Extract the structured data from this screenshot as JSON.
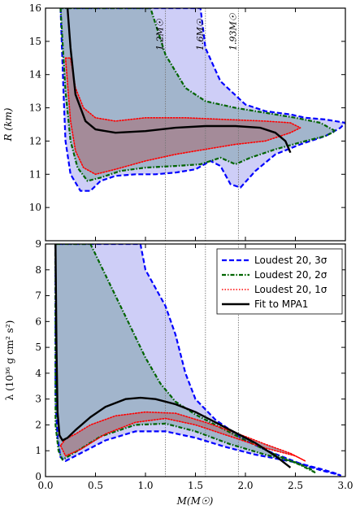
{
  "chart_data": [
    {
      "type": "area",
      "panel": "top",
      "xlabel": "",
      "ylabel": "R (km)",
      "xlim": [
        0.0,
        3.0
      ],
      "ylim": [
        9,
        16
      ],
      "yticks": [
        "10",
        "11",
        "12",
        "13",
        "14",
        "15",
        "16"
      ],
      "grid": false,
      "mass_markers": [
        {
          "x": 1.2,
          "label": "1.2M☉"
        },
        {
          "x": 1.6,
          "label": "1.6M☉"
        },
        {
          "x": 1.93,
          "label": "1.93M☉"
        }
      ],
      "series": [
        {
          "name": "Loudest 20, 3σ",
          "style": "dashed",
          "color": "#0000ff",
          "fill": "#c6c6f6",
          "points": [
            [
              0.15,
              16.0
            ],
            [
              0.18,
              13.5
            ],
            [
              0.2,
              12.0
            ],
            [
              0.25,
              11.0
            ],
            [
              0.35,
              10.5
            ],
            [
              0.45,
              10.5
            ],
            [
              0.55,
              10.8
            ],
            [
              0.7,
              10.95
            ],
            [
              0.9,
              11.0
            ],
            [
              1.1,
              11.0
            ],
            [
              1.3,
              11.05
            ],
            [
              1.5,
              11.15
            ],
            [
              1.65,
              11.4
            ],
            [
              1.75,
              11.25
            ],
            [
              1.85,
              10.7
            ],
            [
              1.95,
              10.6
            ],
            [
              2.1,
              11.1
            ],
            [
              2.3,
              11.6
            ],
            [
              2.55,
              11.9
            ],
            [
              2.8,
              12.15
            ],
            [
              2.95,
              12.4
            ],
            [
              3.0,
              12.55
            ],
            [
              2.8,
              12.65
            ],
            [
              2.6,
              12.7
            ],
            [
              2.45,
              12.8
            ],
            [
              2.2,
              12.9
            ],
            [
              2.0,
              13.1
            ],
            [
              1.75,
              13.8
            ],
            [
              1.6,
              14.8
            ],
            [
              1.55,
              16.0
            ]
          ]
        },
        {
          "name": "Loudest 20, 2σ",
          "style": "dash-dot",
          "color": "#006400",
          "fill": "#9ab0c4",
          "points": [
            [
              0.15,
              16.0
            ],
            [
              0.2,
              13.5
            ],
            [
              0.25,
              12.0
            ],
            [
              0.32,
              11.2
            ],
            [
              0.42,
              10.8
            ],
            [
              0.55,
              10.9
            ],
            [
              0.75,
              11.1
            ],
            [
              1.0,
              11.2
            ],
            [
              1.3,
              11.25
            ],
            [
              1.55,
              11.3
            ],
            [
              1.75,
              11.5
            ],
            [
              1.9,
              11.3
            ],
            [
              2.05,
              11.5
            ],
            [
              2.3,
              11.75
            ],
            [
              2.6,
              12.0
            ],
            [
              2.8,
              12.15
            ],
            [
              2.9,
              12.3
            ],
            [
              2.75,
              12.55
            ],
            [
              2.5,
              12.7
            ],
            [
              2.2,
              12.85
            ],
            [
              1.9,
              13.0
            ],
            [
              1.6,
              13.2
            ],
            [
              1.4,
              13.6
            ],
            [
              1.2,
              14.6
            ],
            [
              1.05,
              16.0
            ]
          ]
        },
        {
          "name": "Loudest 20, 1σ",
          "style": "dotted",
          "color": "#ff0000",
          "fill": "#a4848f",
          "points": [
            [
              0.2,
              14.5
            ],
            [
              0.25,
              12.6
            ],
            [
              0.3,
              11.7
            ],
            [
              0.38,
              11.2
            ],
            [
              0.5,
              11.0
            ],
            [
              0.7,
              11.15
            ],
            [
              1.0,
              11.4
            ],
            [
              1.3,
              11.6
            ],
            [
              1.6,
              11.75
            ],
            [
              1.9,
              11.9
            ],
            [
              2.2,
              12.0
            ],
            [
              2.45,
              12.25
            ],
            [
              2.55,
              12.4
            ],
            [
              2.45,
              12.55
            ],
            [
              2.2,
              12.6
            ],
            [
              1.8,
              12.65
            ],
            [
              1.4,
              12.7
            ],
            [
              1.0,
              12.7
            ],
            [
              0.7,
              12.6
            ],
            [
              0.5,
              12.7
            ],
            [
              0.38,
              13.0
            ],
            [
              0.3,
              13.6
            ],
            [
              0.25,
              14.5
            ]
          ]
        },
        {
          "name": "Fit to MPA1",
          "style": "solid",
          "color": "#000000",
          "points": [
            [
              0.22,
              16.0
            ],
            [
              0.25,
              14.8
            ],
            [
              0.3,
              13.4
            ],
            [
              0.4,
              12.6
            ],
            [
              0.5,
              12.35
            ],
            [
              0.7,
              12.25
            ],
            [
              1.0,
              12.3
            ],
            [
              1.3,
              12.4
            ],
            [
              1.6,
              12.45
            ],
            [
              1.9,
              12.45
            ],
            [
              2.15,
              12.4
            ],
            [
              2.3,
              12.25
            ],
            [
              2.4,
              12.0
            ],
            [
              2.45,
              11.65
            ]
          ]
        }
      ]
    },
    {
      "type": "area",
      "panel": "bottom",
      "xlabel": "M(M☉)",
      "ylabel": "λ (10³⁶ g cm² s²)",
      "xlim": [
        0.0,
        3.0
      ],
      "ylim": [
        0,
        9
      ],
      "xticks": [
        "0.0",
        "0.5",
        "1.0",
        "1.5",
        "2.0",
        "2.5",
        "3.0"
      ],
      "yticks": [
        "0",
        "1",
        "2",
        "3",
        "4",
        "5",
        "6",
        "7",
        "8",
        "9"
      ],
      "grid": false,
      "legend_position": "top-right",
      "series": [
        {
          "name": "Loudest 20, 3σ",
          "style": "dashed",
          "color": "#0000ff",
          "fill": "#c6c6f6",
          "points": [
            [
              0.1,
              9.0
            ],
            [
              0.1,
              3.0
            ],
            [
              0.12,
              1.5
            ],
            [
              0.15,
              0.75
            ],
            [
              0.2,
              0.6
            ],
            [
              0.35,
              0.9
            ],
            [
              0.6,
              1.4
            ],
            [
              0.9,
              1.75
            ],
            [
              1.2,
              1.75
            ],
            [
              1.5,
              1.5
            ],
            [
              1.8,
              1.15
            ],
            [
              2.1,
              0.85
            ],
            [
              2.5,
              0.55
            ],
            [
              2.75,
              0.3
            ],
            [
              2.88,
              0.15
            ],
            [
              2.95,
              0.05
            ],
            [
              2.75,
              0.25
            ],
            [
              2.55,
              0.5
            ],
            [
              2.25,
              0.95
            ],
            [
              2.0,
              1.4
            ],
            [
              1.7,
              2.2
            ],
            [
              1.5,
              3.0
            ],
            [
              1.4,
              4.0
            ],
            [
              1.3,
              5.5
            ],
            [
              1.2,
              6.6
            ],
            [
              1.0,
              8.0
            ],
            [
              0.95,
              9.0
            ]
          ]
        },
        {
          "name": "Loudest 20, 2σ",
          "style": "dash-dot",
          "color": "#006400",
          "fill": "#9ab0c4",
          "points": [
            [
              0.1,
              9.0
            ],
            [
              0.1,
              2.0
            ],
            [
              0.13,
              1.0
            ],
            [
              0.17,
              0.65
            ],
            [
              0.3,
              0.95
            ],
            [
              0.55,
              1.55
            ],
            [
              0.9,
              2.0
            ],
            [
              1.2,
              2.05
            ],
            [
              1.5,
              1.75
            ],
            [
              1.85,
              1.25
            ],
            [
              2.2,
              0.85
            ],
            [
              2.5,
              0.55
            ],
            [
              2.65,
              0.3
            ],
            [
              2.7,
              0.15
            ],
            [
              2.55,
              0.45
            ],
            [
              2.3,
              0.85
            ],
            [
              2.0,
              1.4
            ],
            [
              1.7,
              2.0
            ],
            [
              1.5,
              2.4
            ],
            [
              1.3,
              2.9
            ],
            [
              1.15,
              3.6
            ],
            [
              1.0,
              4.6
            ],
            [
              0.85,
              5.8
            ],
            [
              0.7,
              7.0
            ],
            [
              0.5,
              8.6
            ],
            [
              0.45,
              9.0
            ]
          ]
        },
        {
          "name": "Loudest 20, 1σ",
          "style": "dotted",
          "color": "#ff0000",
          "fill": "#a4848f",
          "points": [
            [
              0.15,
              1.2
            ],
            [
              0.2,
              0.8
            ],
            [
              0.35,
              1.05
            ],
            [
              0.6,
              1.65
            ],
            [
              0.9,
              2.1
            ],
            [
              1.2,
              2.25
            ],
            [
              1.5,
              2.0
            ],
            [
              1.85,
              1.55
            ],
            [
              2.2,
              1.1
            ],
            [
              2.5,
              0.8
            ],
            [
              2.6,
              0.6
            ],
            [
              2.45,
              0.9
            ],
            [
              2.2,
              1.25
            ],
            [
              1.9,
              1.7
            ],
            [
              1.6,
              2.1
            ],
            [
              1.3,
              2.45
            ],
            [
              1.0,
              2.5
            ],
            [
              0.7,
              2.35
            ],
            [
              0.45,
              2.0
            ],
            [
              0.3,
              1.65
            ],
            [
              0.2,
              1.45
            ]
          ]
        },
        {
          "name": "Fit to MPA1",
          "style": "solid",
          "color": "#000000",
          "points": [
            [
              0.1,
              9.0
            ],
            [
              0.11,
              5.0
            ],
            [
              0.12,
              2.5
            ],
            [
              0.14,
              1.6
            ],
            [
              0.17,
              1.4
            ],
            [
              0.22,
              1.5
            ],
            [
              0.3,
              1.8
            ],
            [
              0.45,
              2.3
            ],
            [
              0.6,
              2.7
            ],
            [
              0.8,
              3.0
            ],
            [
              0.95,
              3.05
            ],
            [
              1.1,
              3.0
            ],
            [
              1.3,
              2.8
            ],
            [
              1.5,
              2.5
            ],
            [
              1.7,
              2.1
            ],
            [
              1.9,
              1.7
            ],
            [
              2.1,
              1.3
            ],
            [
              2.3,
              0.8
            ],
            [
              2.45,
              0.35
            ]
          ]
        }
      ]
    }
  ]
}
